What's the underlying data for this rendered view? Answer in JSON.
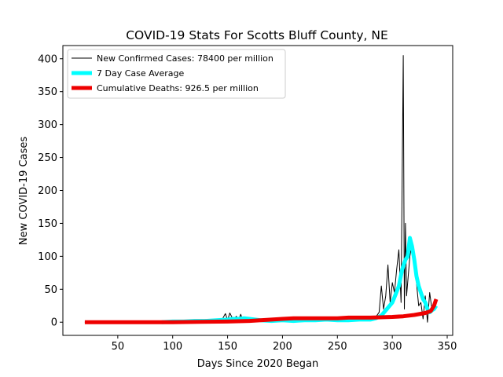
{
  "chart_data": {
    "type": "line",
    "title": "COVID-19 Stats For Scotts Bluff County, NE",
    "xlabel": "Days Since 2020 Began",
    "ylabel": "New COVID-19 Cases",
    "xlim": [
      0,
      355
    ],
    "ylim": [
      -20,
      420
    ],
    "x_ticks": [
      50,
      100,
      150,
      200,
      250,
      300,
      350
    ],
    "y_ticks": [
      0,
      50,
      100,
      150,
      200,
      250,
      300,
      350,
      400
    ],
    "grid": false,
    "legend_position": "top-left",
    "colors": {
      "new_cases": "#000000",
      "avg": "#00ffff",
      "deaths": "#ee0000"
    },
    "series": [
      {
        "name": "New Confirmed Cases: 78400 per million",
        "key": "new_cases",
        "x": [
          20,
          30,
          40,
          50,
          60,
          70,
          80,
          90,
          95,
          98,
          100,
          105,
          110,
          115,
          120,
          125,
          130,
          135,
          140,
          145,
          148,
          150,
          152,
          155,
          158,
          160,
          162,
          164,
          166,
          170,
          180,
          190,
          200,
          210,
          220,
          230,
          240,
          250,
          260,
          270,
          280,
          285,
          288,
          290,
          292,
          294,
          296,
          298,
          300,
          302,
          304,
          306,
          308,
          310,
          311,
          312,
          313,
          314,
          316,
          318,
          320,
          322,
          324,
          326,
          328,
          330,
          332,
          334,
          336,
          338,
          340
        ],
        "y": [
          0,
          0,
          0,
          0,
          0,
          0,
          0,
          0,
          2,
          0,
          3,
          1,
          2,
          0,
          3,
          2,
          4,
          3,
          5,
          4,
          13,
          3,
          14,
          4,
          9,
          3,
          12,
          2,
          6,
          3,
          2,
          2,
          3,
          2,
          4,
          3,
          2,
          4,
          2,
          5,
          4,
          8,
          15,
          55,
          20,
          40,
          87,
          30,
          60,
          45,
          80,
          110,
          30,
          405,
          20,
          150,
          40,
          60,
          100,
          120,
          85,
          60,
          25,
          30,
          5,
          40,
          0,
          45,
          20,
          30,
          35
        ]
      },
      {
        "name": "7 Day Case Average",
        "key": "avg",
        "x": [
          90,
          100,
          110,
          120,
          130,
          140,
          150,
          155,
          160,
          165,
          170,
          180,
          190,
          200,
          210,
          220,
          230,
          240,
          250,
          260,
          270,
          280,
          285,
          290,
          295,
          300,
          303,
          306,
          309,
          312,
          314,
          316,
          318,
          320,
          322,
          324,
          326,
          328,
          330,
          332,
          334,
          336,
          338,
          340
        ],
        "y": [
          0,
          1,
          1,
          2,
          2,
          3,
          4,
          5,
          5,
          6,
          5,
          3,
          2,
          3,
          2,
          3,
          3,
          4,
          3,
          3,
          4,
          4,
          6,
          10,
          20,
          30,
          42,
          55,
          80,
          95,
          100,
          128,
          115,
          95,
          70,
          55,
          45,
          35,
          30,
          20,
          15,
          18,
          20,
          25
        ]
      },
      {
        "name": "Cumulative Deaths: 926.5 per million",
        "key": "deaths",
        "x": [
          20,
          50,
          100,
          150,
          170,
          190,
          200,
          210,
          250,
          260,
          280,
          300,
          310,
          320,
          330,
          335,
          338,
          340
        ],
        "y": [
          0,
          0,
          0,
          1,
          2,
          4,
          5,
          6,
          6,
          7,
          7,
          8,
          9,
          11,
          14,
          17,
          25,
          35
        ]
      }
    ]
  }
}
